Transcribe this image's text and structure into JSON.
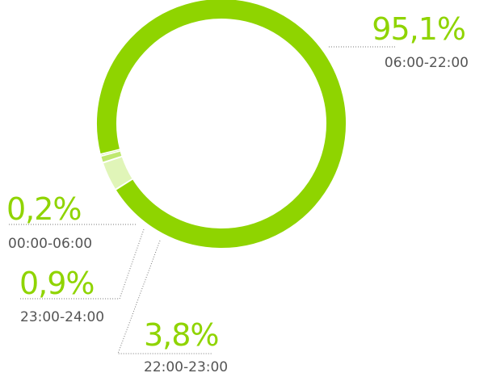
{
  "chart_data": {
    "type": "donut",
    "title": "",
    "accent_color": "#8fd400",
    "slices": [
      {
        "label": "06:00-22:00",
        "percent_label": "95,1%",
        "value": 95.1,
        "color": "#8fd400"
      },
      {
        "label": "22:00-23:00",
        "percent_label": "3,8%",
        "value": 3.8,
        "color": "#e0f5b8"
      },
      {
        "label": "23:00-24:00",
        "percent_label": "0,9%",
        "value": 0.9,
        "color": "#bfe870"
      },
      {
        "label": "00:00-06:00",
        "percent_label": "0,2%",
        "value": 0.2,
        "color": "#8fd400"
      }
    ]
  }
}
